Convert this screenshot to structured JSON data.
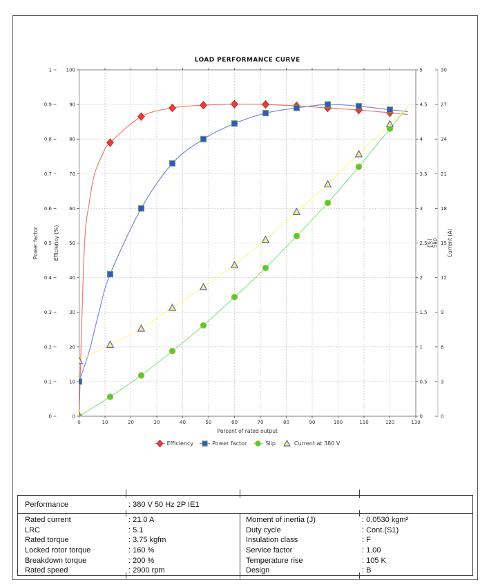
{
  "chart_data": {
    "type": "line",
    "title": "LOAD PERFORMANCE CURVE",
    "xlabel": "Percent of rated output",
    "x_axis": {
      "min": 0,
      "max": 130,
      "tick_step": 10
    },
    "axes": {
      "efficiency": {
        "label": "Efficiency (%)",
        "min": 0,
        "max": 100,
        "tick_step": 10,
        "side": "left"
      },
      "power_factor": {
        "label": "Power factor",
        "min": 0,
        "max": 1,
        "tick_step": 0.1,
        "side": "left-outer"
      },
      "slip": {
        "label": "Slip (%)",
        "min": 0,
        "max": 5,
        "tick_step": 0.5,
        "side": "right"
      },
      "current": {
        "label": "Current (A)",
        "min": 0,
        "max": 30,
        "tick_step": 3,
        "side": "right-outer"
      }
    },
    "x": [
      0,
      12,
      24,
      36,
      48,
      60,
      72,
      84,
      96,
      108,
      120
    ],
    "series": [
      {
        "name": "Efficiency",
        "axis": "efficiency",
        "marker": "diamond",
        "marker_fill": "#e93f38",
        "marker_edge": "#b93029",
        "line_color": "#f3776e",
        "values": [
          0,
          79,
          86.5,
          89,
          89.8,
          90.1,
          90,
          89.6,
          89,
          88.4,
          87.6
        ],
        "curve_hints": [
          [
            2,
            48
          ],
          [
            4,
            62
          ],
          [
            6,
            70
          ],
          [
            9,
            75.5
          ]
        ]
      },
      {
        "name": "Power factor",
        "axis": "power_factor",
        "marker": "square",
        "marker_fill": "#3c50c8",
        "marker_edge": "#58a858",
        "line_color": "#7d85e2",
        "values": [
          0.1,
          0.41,
          0.6,
          0.73,
          0.8,
          0.845,
          0.875,
          0.89,
          0.9,
          0.895,
          0.885
        ],
        "curve_hints": [
          [
            4,
            0.19
          ],
          [
            8,
            0.31
          ]
        ]
      },
      {
        "name": "Slip",
        "axis": "slip",
        "marker": "circle",
        "marker_fill": "#3ed43e",
        "marker_edge": "#d8a830",
        "line_color": "#85e885",
        "values": [
          0,
          0.28,
          0.59,
          0.94,
          1.31,
          1.72,
          2.14,
          2.6,
          3.08,
          3.6,
          4.15
        ]
      },
      {
        "name": "Current at 380 V",
        "axis": "current",
        "marker": "triangle",
        "marker_fill": "#f6f163",
        "marker_edge": "#5e58d0",
        "line_color": "#fbf88e",
        "values": [
          4.8,
          6.2,
          7.6,
          9.4,
          11.2,
          13.1,
          15.3,
          17.7,
          20.1,
          22.7,
          25.3
        ]
      }
    ],
    "legend_position": "bottom",
    "grid": true
  },
  "table": {
    "performance": {
      "label": "Performance",
      "value": ": 380 V 50 Hz 2P IE1"
    },
    "left": [
      {
        "label": "Rated current",
        "value": ": 21.0 A"
      },
      {
        "label": "LRC",
        "value": ": 5.1"
      },
      {
        "label": "Rated torque",
        "value": ": 3.75 kgfm"
      },
      {
        "label": "Locked rotor torque",
        "value": ": 160 %"
      },
      {
        "label": "Breakdown torque",
        "value": ": 200 %"
      },
      {
        "label": "Rated speed",
        "value": ": 2900 rpm"
      }
    ],
    "right": [
      {
        "label": "Moment of inertia (J)",
        "value": ": 0.0530 kgm²"
      },
      {
        "label": "Duty cycle",
        "value": ": Cont.(S1)"
      },
      {
        "label": "Insulation class",
        "value": ": F"
      },
      {
        "label": "Service factor",
        "value": ": 1.00"
      },
      {
        "label": "Temperature rise",
        "value": ": 105 K"
      },
      {
        "label": "Design",
        "value": ": B"
      }
    ]
  }
}
